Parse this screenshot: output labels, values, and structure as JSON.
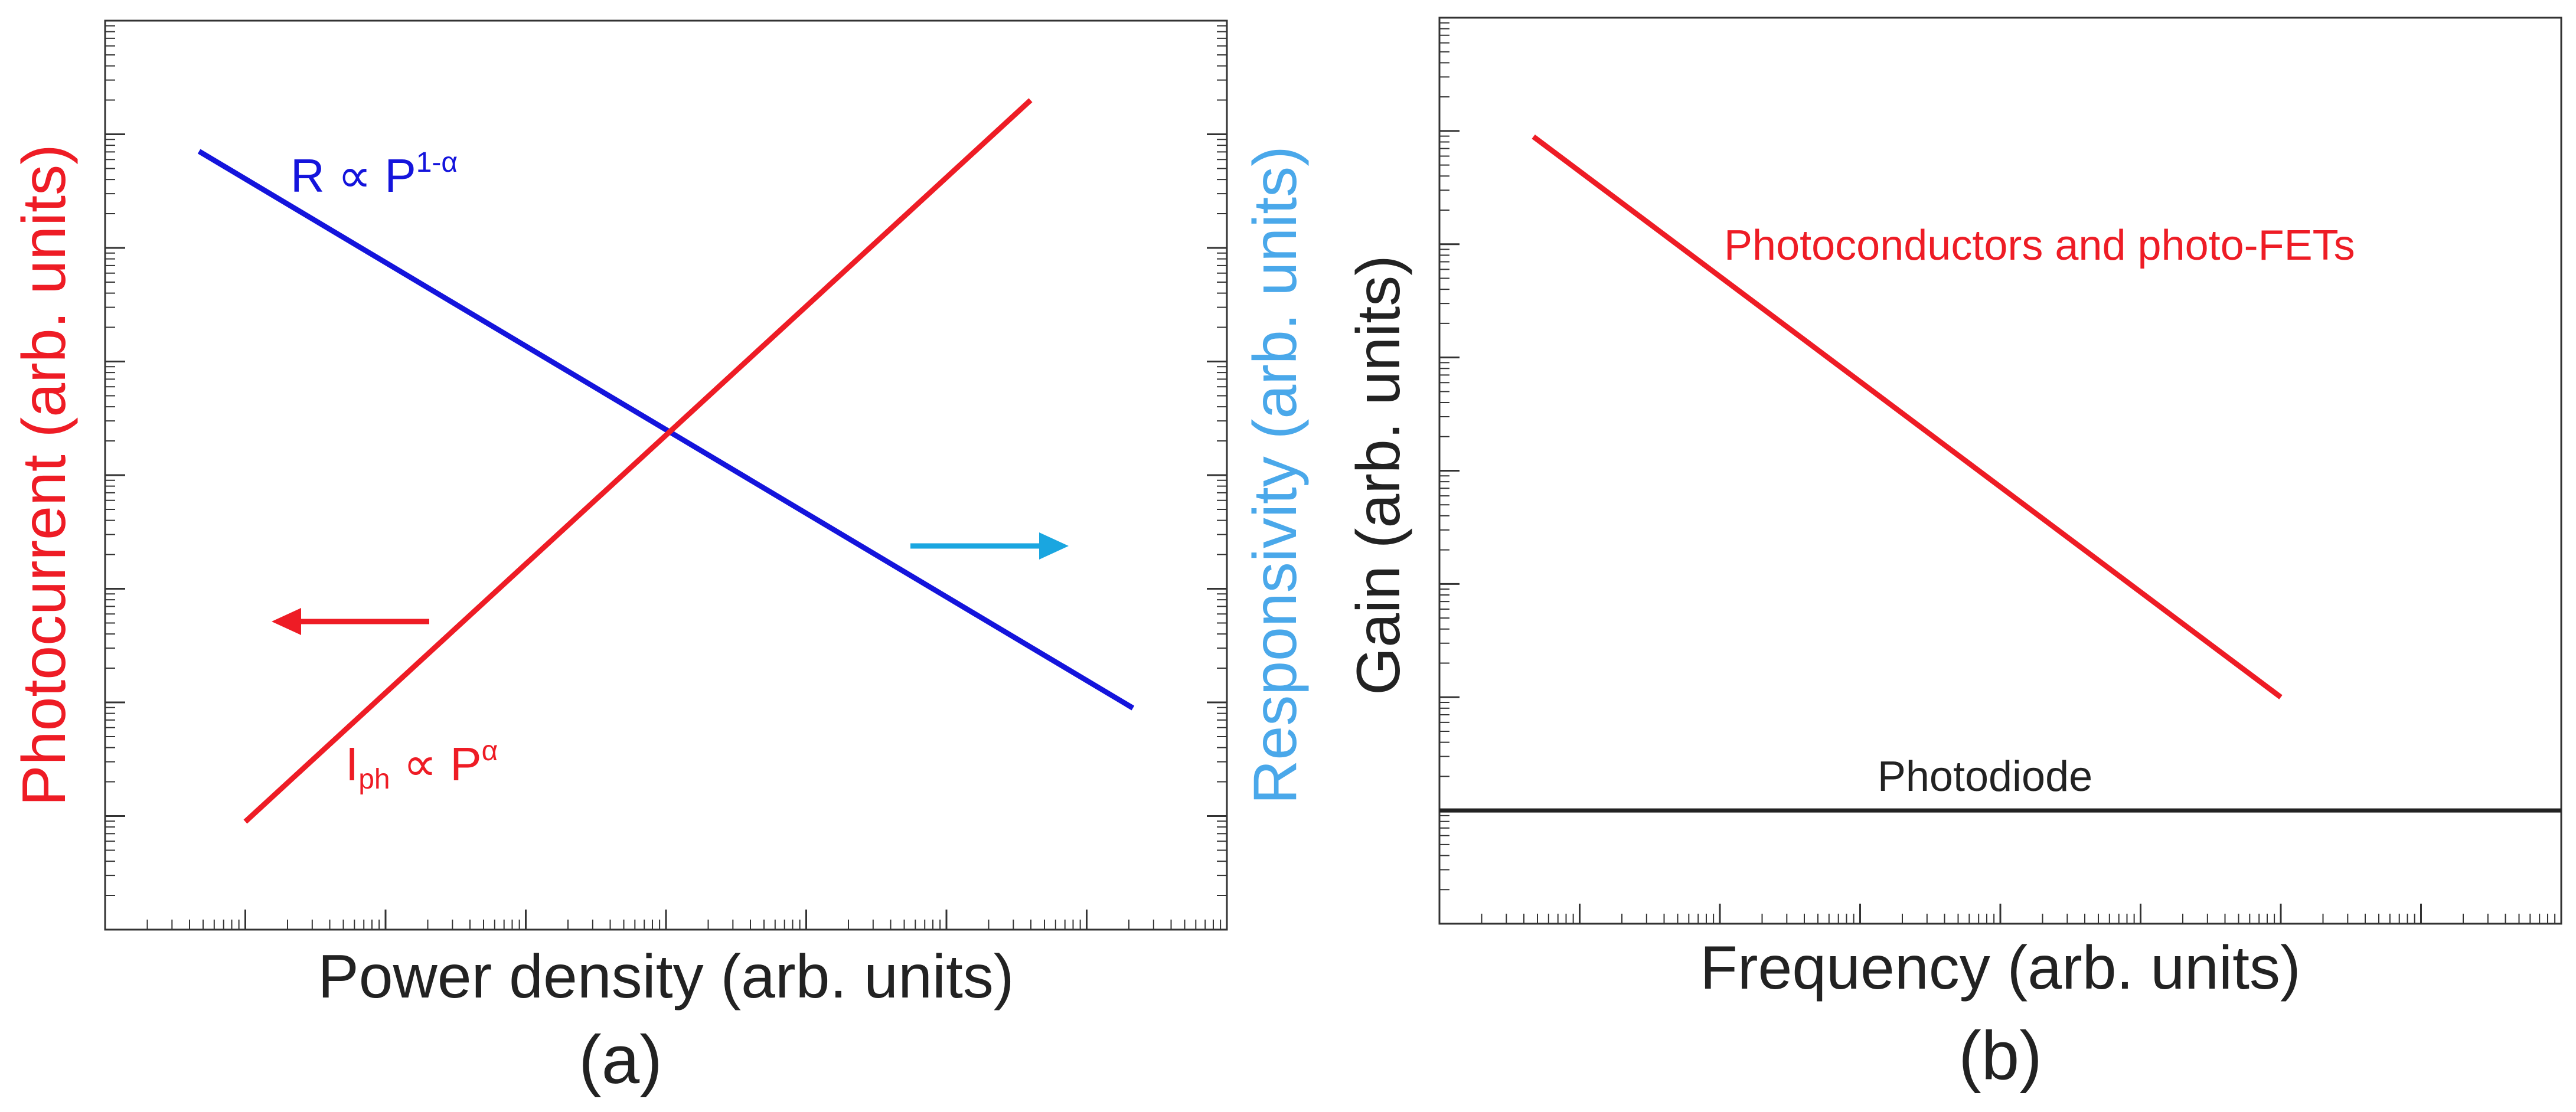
{
  "colors": {
    "red": "#ee1c25",
    "blue": "#1414dc",
    "cyan": "#1aa6e0",
    "light_blue": "#4aa8ea",
    "black": "#222222",
    "axis": "#333333"
  },
  "chart_data": [
    {
      "type": "line",
      "panel_label": "(a)",
      "xlabel": "Power density (arb. units)",
      "ylabel_left": "Photocurrent (arb. units)",
      "ylabel_right": "Responsivity (arb. units)",
      "scale": "log-log",
      "xlim": [
        0,
        8
      ],
      "ylim": [
        0,
        8
      ],
      "grid": false,
      "series": [
        {
          "name": "R ∝ P1-α",
          "label_base": "R ∝ P",
          "label_sup": "1-α",
          "color": "blue",
          "x": [
            0.67,
            7.33
          ],
          "y": [
            6.85,
            1.95
          ]
        },
        {
          "name": "Iph ∝ Pα",
          "label_base": "I",
          "label_sub": "ph",
          "label_mid": " ∝ P",
          "label_sup": "α",
          "color": "red",
          "x": [
            1.0,
            6.6
          ],
          "y": [
            0.95,
            7.3
          ]
        }
      ],
      "annotations": [
        {
          "kind": "arrow",
          "direction": "left",
          "meaning": "red curve uses left axis",
          "color": "red"
        },
        {
          "kind": "arrow",
          "direction": "right",
          "meaning": "blue curve uses right axis",
          "color": "cyan"
        }
      ]
    },
    {
      "type": "line",
      "panel_label": "(b)",
      "xlabel": "Frequency (arb. units)",
      "ylabel": "Gain (arb. units)",
      "scale": "log-log",
      "xlim": [
        0,
        8
      ],
      "ylim": [
        0,
        8
      ],
      "grid": false,
      "series": [
        {
          "name": "Photoconductors and photo-FETs",
          "color": "red",
          "x": [
            0.67,
            6.0
          ],
          "y": [
            6.95,
            2.0
          ]
        },
        {
          "name": "Photodiode",
          "color": "black",
          "x": [
            0.0,
            8.0
          ],
          "y": [
            1.0,
            1.0
          ]
        }
      ]
    }
  ]
}
